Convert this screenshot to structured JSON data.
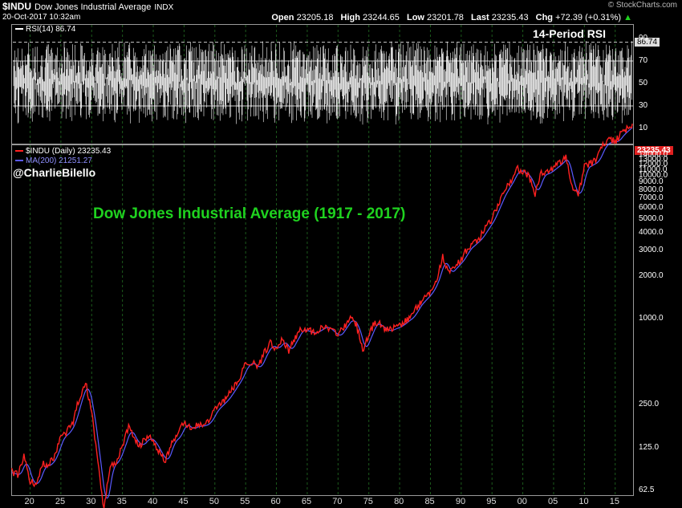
{
  "header": {
    "symbol": "$INDU",
    "name": "Dow Jones Industrial Average",
    "exchange": "INDX",
    "timestamp": "20-Oct-2017 10:32am",
    "open_label": "Open",
    "open": "23205.18",
    "high_label": "High",
    "high": "23244.65",
    "low_label": "Low",
    "low": "23201.78",
    "last_label": "Last",
    "last": "23235.43",
    "chg_label": "Chg",
    "chg": "+72.39 (+0.31%)",
    "credit": "© StockCharts.com"
  },
  "rsi_panel": {
    "legend": "RSI(14) 86.74",
    "title": "14-Period RSI",
    "current_value_label": "86.74",
    "y_ticks": [
      90,
      70,
      50,
      30,
      10
    ]
  },
  "price_panel": {
    "legend_price": "$INDU (Daily) 23235.43",
    "legend_ma": "MA(200) 21251.27",
    "twitter": "@CharlieBilello",
    "title": "Dow Jones Industrial Average (1917 - 2017)",
    "last_tag": "23235.43",
    "price_color": "#ff2020",
    "ma_color": "#5a5aff",
    "accent_green": "#1fd21f"
  },
  "chart_data": [
    {
      "type": "line",
      "title": "14-Period RSI",
      "series": [
        {
          "name": "RSI(14)",
          "last": 86.74
        }
      ],
      "ylim": [
        0,
        100
      ],
      "y_ticks": [
        10,
        30,
        50,
        70,
        90
      ],
      "reference_lines": [
        30,
        70,
        86.74
      ]
    },
    {
      "type": "line",
      "title": "Dow Jones Industrial Average (1917 - 2017)",
      "y_scale": "log",
      "xlabel": "",
      "ylabel": "",
      "x_ticks": [
        "20",
        "25",
        "30",
        "35",
        "40",
        "45",
        "50",
        "55",
        "60",
        "65",
        "70",
        "75",
        "80",
        "85",
        "90",
        "95",
        "00",
        "05",
        "10",
        "15"
      ],
      "y_ticks": [
        62.5,
        125.0,
        250.0,
        1000.0,
        2000.0,
        3000.0,
        4000.0,
        5000.0,
        6000.0,
        7000.0,
        8000.0,
        9000.0,
        10000.0,
        11000.0,
        12000.0,
        13000.0,
        14000.0,
        15000.0,
        16000.0,
        17000.0,
        18000.0,
        19000.0,
        20000.0
      ],
      "y_tick_labels": [
        "62.5",
        "125.0",
        "250.0",
        "1000.0",
        "2000.0",
        "3000.0",
        "4000.0",
        "5000.0",
        "6000.0",
        "7000.0",
        "8000.0",
        "9000.0",
        "10000.0",
        "11000.0",
        "12000.0",
        "13000.0",
        "14000.0",
        "15000.0",
        "16000.0",
        "17000.0",
        "18000.0",
        "19000.0",
        "20000.0"
      ],
      "series": [
        {
          "name": "$INDU (Daily)",
          "x": [
            1917,
            1918,
            1919,
            1920,
            1921,
            1922,
            1923,
            1924,
            1925,
            1926,
            1927,
            1928,
            1929,
            1930,
            1931,
            1932,
            1933,
            1934,
            1935,
            1936,
            1937,
            1938,
            1939,
            1940,
            1941,
            1942,
            1943,
            1944,
            1945,
            1946,
            1947,
            1948,
            1949,
            1950,
            1952,
            1954,
            1955,
            1956,
            1957,
            1958,
            1959,
            1960,
            1961,
            1962,
            1964,
            1966,
            1968,
            1970,
            1972,
            1973,
            1974,
            1976,
            1978,
            1980,
            1982,
            1983,
            1985,
            1986,
            1987,
            1988,
            1990,
            1991,
            1993,
            1995,
            1997,
            1998,
            1999,
            2000,
            2001,
            2002,
            2003,
            2004,
            2006,
            2007,
            2008,
            2009,
            2010,
            2012,
            2013,
            2014,
            2015,
            2016,
            2017.8
          ],
          "y": [
            85,
            80,
            107,
            72,
            70,
            95,
            95,
            110,
            150,
            160,
            190,
            280,
            360,
            220,
            100,
            45,
            95,
            100,
            130,
            175,
            140,
            130,
            150,
            140,
            115,
            100,
            140,
            150,
            190,
            170,
            180,
            180,
            190,
            230,
            280,
            380,
            480,
            500,
            450,
            570,
            670,
            620,
            720,
            600,
            860,
            800,
            900,
            760,
            1020,
            900,
            600,
            960,
            830,
            900,
            1050,
            1250,
            1550,
            1900,
            2700,
            2100,
            2600,
            3100,
            3700,
            5000,
            7900,
            9200,
            11300,
            10800,
            10000,
            7500,
            10400,
            10600,
            12400,
            13900,
            8500,
            7200,
            11500,
            12900,
            16500,
            17800,
            17500,
            19800,
            23235
          ]
        },
        {
          "name": "MA(200)",
          "last": 21251.27
        }
      ]
    }
  ]
}
